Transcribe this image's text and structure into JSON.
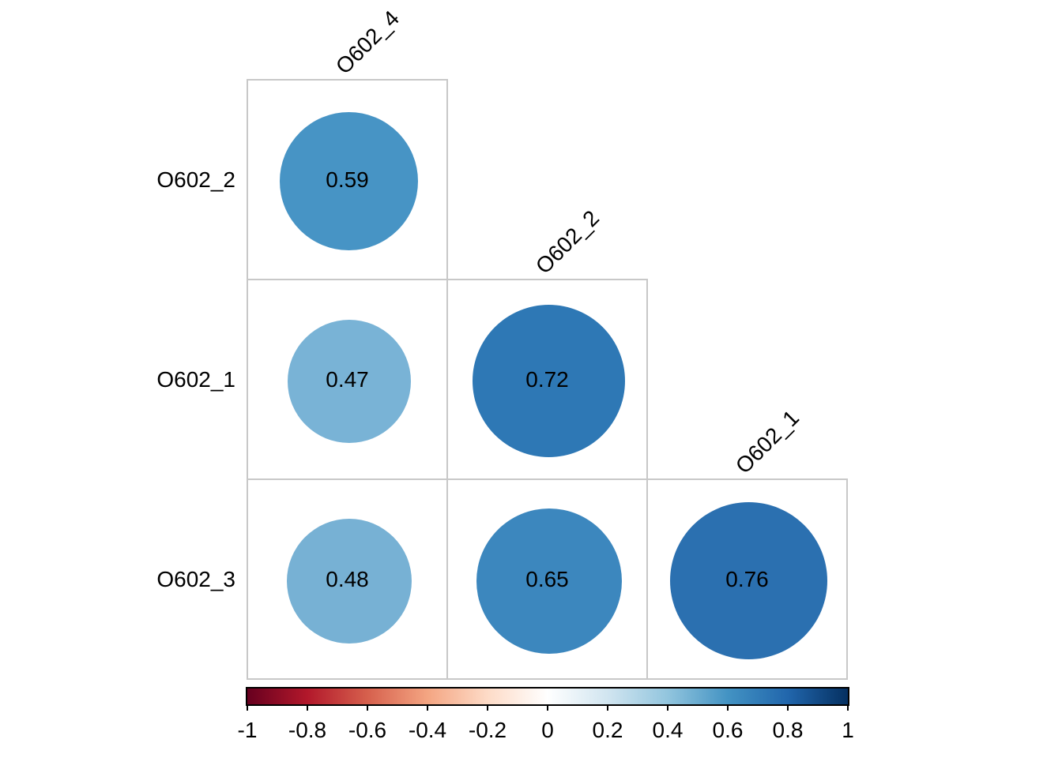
{
  "figure": {
    "background_color": "#ffffff",
    "grid_line_color": "#c8c8c8",
    "text_color": "#000000"
  },
  "chart_data": {
    "type": "heatmap",
    "subtype": "correlation-matrix-circles",
    "description": "Lower-triangle corrplot: circles sized and colored by correlation, value printed in center",
    "column_labels": [
      "O602_4",
      "O602_2",
      "O602_1"
    ],
    "row_labels": [
      "O602_2",
      "O602_1",
      "O602_3"
    ],
    "cells": [
      {
        "row": 0,
        "col": 0,
        "row_label": "O602_2",
        "col_label": "O602_4",
        "value": 0.59,
        "display": "0.59",
        "color": "#4794C5"
      },
      {
        "row": 1,
        "col": 0,
        "row_label": "O602_1",
        "col_label": "O602_4",
        "value": 0.47,
        "display": "0.47",
        "color": "#79B3D6"
      },
      {
        "row": 1,
        "col": 1,
        "row_label": "O602_1",
        "col_label": "O602_2",
        "value": 0.72,
        "display": "0.72",
        "color": "#2E78B5"
      },
      {
        "row": 2,
        "col": 0,
        "row_label": "O602_3",
        "col_label": "O602_4",
        "value": 0.48,
        "display": "0.48",
        "color": "#77B1D4"
      },
      {
        "row": 2,
        "col": 1,
        "row_label": "O602_3",
        "col_label": "O602_2",
        "value": 0.65,
        "display": "0.65",
        "color": "#3C87BE"
      },
      {
        "row": 2,
        "col": 2,
        "row_label": "O602_3",
        "col_label": "O602_1",
        "value": 0.76,
        "display": "0.76",
        "color": "#2B70B0"
      }
    ],
    "colorbar": {
      "min": -1,
      "max": 1,
      "tick_labels": [
        "-1",
        "-0.8",
        "-0.6",
        "-0.4",
        "-0.2",
        "0",
        "0.2",
        "0.4",
        "0.6",
        "0.8",
        "1"
      ],
      "gradient_stops": [
        "#67001F",
        "#B2182B",
        "#D6604D",
        "#F4A582",
        "#FDDBC7",
        "#FFFFFF",
        "#D1E5F0",
        "#92C5DE",
        "#4393C3",
        "#2166AC",
        "#053061"
      ],
      "legend_position": "bottom"
    }
  }
}
